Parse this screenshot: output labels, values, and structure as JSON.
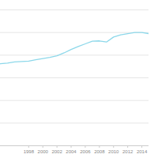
{
  "chart_data": {
    "type": "line",
    "x": [
      1994,
      1995,
      1996,
      1997,
      1998,
      1999,
      2000,
      2001,
      2002,
      2003,
      2004,
      2005,
      2006,
      2007,
      2008,
      2009,
      2010,
      2011,
      2012,
      2013,
      2014,
      2015
    ],
    "values": [
      3.62,
      3.65,
      3.7,
      3.72,
      3.74,
      3.8,
      3.85,
      3.9,
      3.97,
      4.1,
      4.25,
      4.38,
      4.5,
      4.62,
      4.63,
      4.58,
      4.8,
      4.9,
      4.95,
      5.0,
      5.0,
      4.95
    ],
    "color": "#8dd8ea",
    "xlim": [
      1994,
      2015
    ],
    "xticks": [
      1998,
      2000,
      2002,
      2004,
      2006,
      2008,
      2010,
      2012,
      2014
    ],
    "ylim": [
      0,
      6
    ],
    "yticks": [
      0,
      1,
      2,
      3,
      4,
      5,
      6
    ],
    "grid": true,
    "tick_labels": "x"
  }
}
